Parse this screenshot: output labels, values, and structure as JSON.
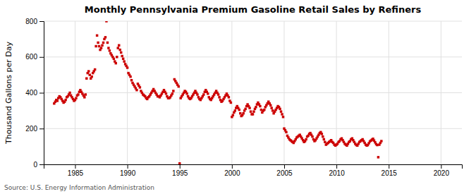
{
  "chart_data": {
    "type": "scatter",
    "title": "Monthly Pennsylvania Premium Gasoline Retail Sales by Refiners",
    "y_label": "Thousand Gallons per Day",
    "annotations": [
      "Source: U.S. Energy Information Administration"
    ],
    "color": "#cc0000",
    "marker": "square",
    "grid": true,
    "xlim": [
      1982,
      2022
    ],
    "ylim": [
      0,
      800
    ],
    "xticks": [
      1985,
      1990,
      1995,
      2000,
      2005,
      2010,
      2015,
      2020
    ],
    "yticks": [
      0,
      200,
      400,
      600,
      800
    ],
    "x": [
      1983.0,
      1983.1,
      1983.2,
      1983.3,
      1983.4,
      1983.5,
      1983.6,
      1983.7,
      1983.8,
      1983.9,
      1984.0,
      1984.1,
      1984.2,
      1984.3,
      1984.4,
      1984.5,
      1984.6,
      1984.7,
      1984.8,
      1984.9,
      1985.0,
      1985.1,
      1985.2,
      1985.3,
      1985.4,
      1985.5,
      1985.6,
      1985.7,
      1985.8,
      1985.9,
      1986.0,
      1986.1,
      1986.2,
      1986.3,
      1986.4,
      1986.5,
      1986.6,
      1986.7,
      1986.8,
      1986.9,
      1987.0,
      1987.1,
      1987.2,
      1987.3,
      1987.4,
      1987.5,
      1987.6,
      1987.7,
      1987.8,
      1987.9,
      1988.0,
      1988.1,
      1988.2,
      1988.3,
      1988.4,
      1988.5,
      1988.6,
      1988.7,
      1988.8,
      1988.9,
      1989.0,
      1989.1,
      1989.2,
      1989.3,
      1989.4,
      1989.5,
      1989.6,
      1989.7,
      1989.8,
      1989.9,
      1990.0,
      1990.1,
      1990.2,
      1990.3,
      1990.4,
      1990.5,
      1990.6,
      1990.7,
      1990.8,
      1990.9,
      1991.0,
      1991.1,
      1991.2,
      1991.3,
      1991.4,
      1991.5,
      1991.6,
      1991.7,
      1991.8,
      1991.9,
      1992.0,
      1992.1,
      1992.2,
      1992.3,
      1992.4,
      1992.5,
      1992.6,
      1992.7,
      1992.8,
      1992.9,
      1993.0,
      1993.1,
      1993.2,
      1993.3,
      1993.4,
      1993.5,
      1993.6,
      1993.7,
      1993.8,
      1993.9,
      1994.0,
      1994.1,
      1994.2,
      1994.3,
      1994.4,
      1994.5,
      1994.6,
      1994.7,
      1994.8,
      1994.9,
      1995.0,
      1995.1,
      1995.2,
      1995.3,
      1995.4,
      1995.5,
      1995.6,
      1995.7,
      1995.8,
      1995.9,
      1996.0,
      1996.1,
      1996.2,
      1996.3,
      1996.4,
      1996.5,
      1996.6,
      1996.7,
      1996.8,
      1996.9,
      1997.0,
      1997.1,
      1997.2,
      1997.3,
      1997.4,
      1997.5,
      1997.6,
      1997.7,
      1997.8,
      1997.9,
      1998.0,
      1998.1,
      1998.2,
      1998.3,
      1998.4,
      1998.5,
      1998.6,
      1998.7,
      1998.8,
      1998.9,
      1999.0,
      1999.1,
      1999.2,
      1999.3,
      1999.4,
      1999.5,
      1999.6,
      1999.7,
      1999.8,
      1999.9,
      2000.0,
      2000.1,
      2000.2,
      2000.3,
      2000.4,
      2000.5,
      2000.6,
      2000.7,
      2000.8,
      2000.9,
      2001.0,
      2001.1,
      2001.2,
      2001.3,
      2001.4,
      2001.5,
      2001.6,
      2001.7,
      2001.8,
      2001.9,
      2002.0,
      2002.1,
      2002.2,
      2002.3,
      2002.4,
      2002.5,
      2002.6,
      2002.7,
      2002.8,
      2002.9,
      2003.0,
      2003.1,
      2003.2,
      2003.3,
      2003.4,
      2003.5,
      2003.6,
      2003.7,
      2003.8,
      2003.9,
      2004.0,
      2004.1,
      2004.2,
      2004.3,
      2004.4,
      2004.5,
      2004.6,
      2004.7,
      2004.8,
      2004.9,
      2005.0,
      2005.1,
      2005.2,
      2005.3,
      2005.4,
      2005.5,
      2005.6,
      2005.7,
      2005.8,
      2005.9,
      2006.0,
      2006.1,
      2006.2,
      2006.3,
      2006.4,
      2006.5,
      2006.6,
      2006.7,
      2006.8,
      2006.9,
      2007.0,
      2007.1,
      2007.2,
      2007.3,
      2007.4,
      2007.5,
      2007.6,
      2007.7,
      2007.8,
      2007.9,
      2008.0,
      2008.1,
      2008.2,
      2008.3,
      2008.4,
      2008.5,
      2008.6,
      2008.7,
      2008.8,
      2008.9,
      2009.0,
      2009.1,
      2009.2,
      2009.3,
      2009.4,
      2009.5,
      2009.6,
      2009.7,
      2009.8,
      2009.9,
      2010.0,
      2010.1,
      2010.2,
      2010.3,
      2010.4,
      2010.5,
      2010.6,
      2010.7,
      2010.8,
      2010.9,
      2011.0,
      2011.1,
      2011.2,
      2011.3,
      2011.4,
      2011.5,
      2011.6,
      2011.7,
      2011.8,
      2011.9,
      2012.0,
      2012.1,
      2012.2,
      2012.3,
      2012.4,
      2012.5,
      2012.6,
      2012.7,
      2012.8,
      2012.9,
      2013.0,
      2013.1,
      2013.2,
      2013.3,
      2013.4,
      2013.5,
      2013.6,
      2013.7,
      2013.8,
      2013.9,
      2014.0,
      2014.1,
      2014.2,
      2014.3
    ],
    "values": [
      340,
      350,
      360,
      355,
      370,
      380,
      375,
      365,
      355,
      345,
      350,
      360,
      375,
      380,
      390,
      400,
      385,
      375,
      365,
      355,
      360,
      370,
      385,
      390,
      405,
      415,
      405,
      395,
      385,
      375,
      390,
      480,
      510,
      520,
      500,
      480,
      490,
      510,
      520,
      530,
      660,
      720,
      680,
      660,
      640,
      650,
      665,
      680,
      700,
      710,
      800,
      680,
      650,
      635,
      620,
      610,
      600,
      590,
      575,
      565,
      600,
      650,
      665,
      640,
      625,
      605,
      590,
      575,
      560,
      550,
      540,
      510,
      500,
      490,
      470,
      455,
      445,
      435,
      425,
      415,
      450,
      440,
      430,
      410,
      400,
      390,
      385,
      380,
      370,
      365,
      375,
      380,
      390,
      400,
      410,
      420,
      410,
      400,
      390,
      380,
      380,
      375,
      385,
      395,
      405,
      415,
      405,
      395,
      380,
      370,
      370,
      375,
      385,
      395,
      410,
      475,
      465,
      455,
      445,
      435,
      5,
      370,
      380,
      390,
      400,
      410,
      405,
      395,
      380,
      370,
      365,
      370,
      380,
      390,
      400,
      410,
      400,
      390,
      375,
      365,
      360,
      370,
      380,
      390,
      405,
      415,
      405,
      395,
      375,
      365,
      360,
      370,
      380,
      390,
      400,
      410,
      400,
      390,
      375,
      360,
      350,
      355,
      365,
      375,
      385,
      395,
      385,
      375,
      355,
      345,
      265,
      275,
      290,
      300,
      315,
      325,
      315,
      305,
      285,
      270,
      275,
      285,
      300,
      310,
      325,
      335,
      325,
      315,
      295,
      280,
      280,
      295,
      310,
      320,
      335,
      345,
      335,
      325,
      305,
      290,
      300,
      305,
      320,
      330,
      340,
      350,
      340,
      330,
      315,
      300,
      285,
      295,
      305,
      315,
      325,
      320,
      310,
      295,
      280,
      265,
      200,
      190,
      180,
      160,
      150,
      140,
      135,
      130,
      125,
      120,
      130,
      140,
      150,
      155,
      160,
      165,
      155,
      145,
      135,
      125,
      130,
      140,
      155,
      160,
      170,
      175,
      165,
      155,
      140,
      130,
      135,
      145,
      155,
      165,
      175,
      180,
      170,
      155,
      140,
      125,
      110,
      115,
      120,
      125,
      130,
      135,
      125,
      120,
      110,
      105,
      110,
      115,
      125,
      130,
      140,
      145,
      135,
      125,
      115,
      110,
      105,
      115,
      125,
      130,
      140,
      145,
      135,
      125,
      115,
      108,
      105,
      115,
      125,
      130,
      135,
      140,
      130,
      120,
      110,
      105,
      108,
      118,
      128,
      133,
      138,
      143,
      133,
      123,
      113,
      108,
      40,
      110,
      120,
      130
    ]
  }
}
